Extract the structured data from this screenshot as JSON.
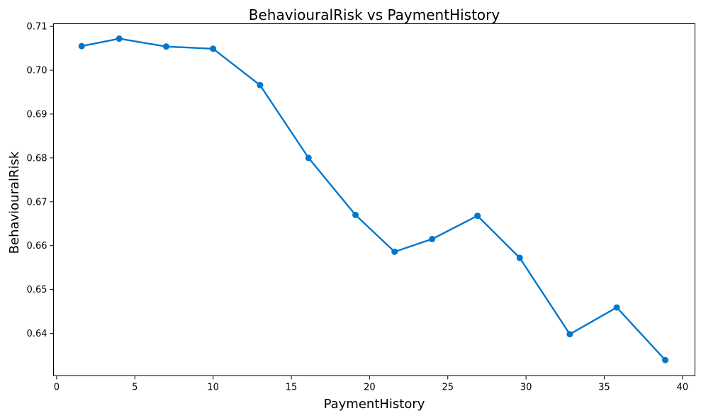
{
  "chart_data": {
    "type": "line",
    "title": "BehaviouralRisk vs PaymentHistory",
    "xlabel": "PaymentHistory",
    "ylabel": "BehaviouralRisk",
    "xlim": [
      -0.2,
      40.8
    ],
    "ylim": [
      0.6303,
      0.7106
    ],
    "x_ticks": [
      0,
      5,
      10,
      15,
      20,
      25,
      30,
      35,
      40
    ],
    "y_ticks": [
      0.64,
      0.65,
      0.66,
      0.67,
      0.68,
      0.69,
      0.7,
      0.71
    ],
    "grid": false,
    "color": "#0077cc",
    "series": [
      {
        "x": [
          1.6,
          4.0,
          7.0,
          10.0,
          13.0,
          16.1,
          19.1,
          21.6,
          24.0,
          26.9,
          29.6,
          32.8,
          35.8,
          38.9
        ],
        "y": [
          0.7055,
          0.7072,
          0.7054,
          0.7049,
          0.6966,
          0.68,
          0.667,
          0.6586,
          0.6615,
          0.6668,
          0.6572,
          0.6398,
          0.6459,
          0.6339
        ]
      }
    ]
  }
}
